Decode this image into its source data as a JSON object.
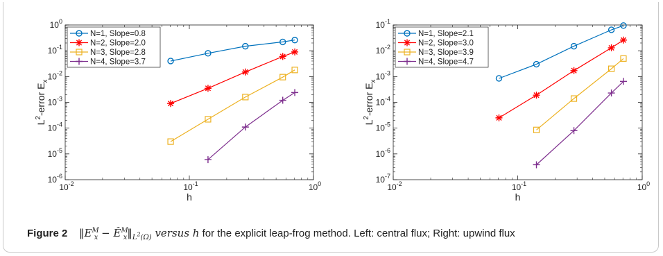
{
  "chart_data": [
    {
      "type": "line",
      "xscale": "log",
      "yscale": "log",
      "xlabel": "h",
      "ylabel": "L²-error E_x",
      "xlabel_parts": {
        "main": "h"
      },
      "ylabel_parts": {
        "pre": "L",
        "sup": "2",
        "mid": "-error E",
        "sub": "x"
      },
      "xlim": [
        0.01,
        1
      ],
      "ylim": [
        1e-06,
        1
      ],
      "xticks": [
        {
          "b": "10",
          "e": "-2",
          "v": 0.01
        },
        {
          "b": "10",
          "e": "-1",
          "v": 0.1
        },
        {
          "b": "10",
          "e": "0",
          "v": 1
        }
      ],
      "yticks": [
        {
          "b": "10",
          "e": "-6",
          "v": 1e-06
        },
        {
          "b": "10",
          "e": "-5",
          "v": 1e-05
        },
        {
          "b": "10",
          "e": "-4",
          "v": 0.0001
        },
        {
          "b": "10",
          "e": "-3",
          "v": 0.001
        },
        {
          "b": "10",
          "e": "-2",
          "v": 0.01
        },
        {
          "b": "10",
          "e": "-1",
          "v": 0.1
        },
        {
          "b": "10",
          "e": "0",
          "v": 1
        }
      ],
      "legend_position": "top-left",
      "series": [
        {
          "name": "N=1, Slope=0.8",
          "color": "#0072BD",
          "marker": "circle",
          "x": [
            0.0707,
            0.1414,
            0.2828,
            0.5657,
            0.7071
          ],
          "y": [
            0.04,
            0.08,
            0.15,
            0.22,
            0.26
          ]
        },
        {
          "name": "N=2, Slope=2.0",
          "color": "#FF0000",
          "marker": "asterisk",
          "x": [
            0.0707,
            0.1414,
            0.2828,
            0.5657,
            0.7071
          ],
          "y": [
            0.0009,
            0.0035,
            0.015,
            0.06,
            0.09
          ]
        },
        {
          "name": "N=3, Slope=2.8",
          "color": "#EDB120",
          "marker": "square",
          "x": [
            0.0707,
            0.1414,
            0.2828,
            0.5657,
            0.7071
          ],
          "y": [
            3e-05,
            0.00022,
            0.0016,
            0.0095,
            0.018
          ]
        },
        {
          "name": "N=4, Slope=3.7",
          "color": "#7E2F8E",
          "marker": "plus",
          "x": [
            0.1414,
            0.2828,
            0.5657,
            0.7071
          ],
          "y": [
            6e-06,
            0.00011,
            0.0012,
            0.0024
          ]
        }
      ]
    },
    {
      "type": "line",
      "xscale": "log",
      "yscale": "log",
      "xlabel": "h",
      "ylabel": "L²-error E_x",
      "xlabel_parts": {
        "main": "h"
      },
      "ylabel_parts": {
        "pre": "L",
        "sup": "2",
        "mid": "-error E",
        "sub": "x"
      },
      "xlim": [
        0.01,
        1
      ],
      "ylim": [
        1e-07,
        0.1
      ],
      "xticks": [
        {
          "b": "10",
          "e": "-2",
          "v": 0.01
        },
        {
          "b": "10",
          "e": "-1",
          "v": 0.1
        },
        {
          "b": "10",
          "e": "0",
          "v": 1
        }
      ],
      "yticks": [
        {
          "b": "10",
          "e": "-7",
          "v": 1e-07
        },
        {
          "b": "10",
          "e": "-6",
          "v": 1e-06
        },
        {
          "b": "10",
          "e": "-5",
          "v": 1e-05
        },
        {
          "b": "10",
          "e": "-4",
          "v": 0.0001
        },
        {
          "b": "10",
          "e": "-3",
          "v": 0.001
        },
        {
          "b": "10",
          "e": "-2",
          "v": 0.01
        },
        {
          "b": "10",
          "e": "-1",
          "v": 0.1
        }
      ],
      "legend_position": "top-left",
      "series": [
        {
          "name": "N=1, Slope=2.1",
          "color": "#0072BD",
          "marker": "circle",
          "x": [
            0.0707,
            0.1414,
            0.2828,
            0.5657,
            0.7071
          ],
          "y": [
            0.00085,
            0.003,
            0.015,
            0.065,
            0.095
          ]
        },
        {
          "name": "N=2, Slope=3.0",
          "color": "#FF0000",
          "marker": "asterisk",
          "x": [
            0.0707,
            0.1414,
            0.2828,
            0.5657,
            0.7071
          ],
          "y": [
            2.5e-05,
            0.00019,
            0.0017,
            0.013,
            0.026
          ]
        },
        {
          "name": "N=3, Slope=3.9",
          "color": "#EDB120",
          "marker": "square",
          "x": [
            0.1414,
            0.2828,
            0.5657,
            0.7071
          ],
          "y": [
            8.5e-06,
            0.00014,
            0.002,
            0.005
          ]
        },
        {
          "name": "N=4, Slope=4.7",
          "color": "#7E2F8E",
          "marker": "plus",
          "x": [
            0.1414,
            0.2828,
            0.5657,
            0.7071
          ],
          "y": [
            3.8e-07,
            8e-06,
            0.00023,
            0.00065
          ]
        }
      ]
    }
  ],
  "caption": {
    "label": "Figure 2",
    "math_norm": "‖E",
    "math_sup1": "M",
    "math_sub1": "x",
    "math_mid": " − Ê",
    "math_sup2": "M",
    "math_sub2": "x",
    "math_close": "‖",
    "math_norm_sub": "L",
    "math_norm_sub_sup": "2",
    "math_norm_sub_tail": "(Ω)",
    "versus": " versus h",
    "rest": " for the explicit leap-frog method. Left: central flux; Right: upwind flux"
  }
}
